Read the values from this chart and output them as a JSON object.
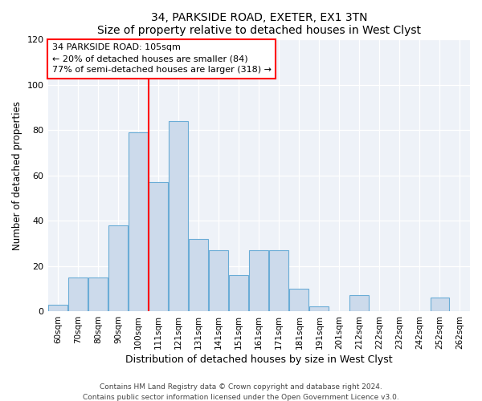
{
  "title1": "34, PARKSIDE ROAD, EXETER, EX1 3TN",
  "title2": "Size of property relative to detached houses in West Clyst",
  "xlabel": "Distribution of detached houses by size in West Clyst",
  "ylabel": "Number of detached properties",
  "bar_labels": [
    "60sqm",
    "70sqm",
    "80sqm",
    "90sqm",
    "100sqm",
    "111sqm",
    "121sqm",
    "131sqm",
    "141sqm",
    "151sqm",
    "161sqm",
    "171sqm",
    "181sqm",
    "191sqm",
    "201sqm",
    "212sqm",
    "222sqm",
    "232sqm",
    "242sqm",
    "252sqm",
    "262sqm"
  ],
  "bar_values": [
    3,
    15,
    15,
    38,
    79,
    57,
    84,
    32,
    27,
    16,
    27,
    27,
    10,
    2,
    0,
    7,
    0,
    0,
    0,
    6,
    0
  ],
  "bar_color": "#ccdaeb",
  "bar_edge_color": "#6aacd6",
  "ylim": [
    0,
    120
  ],
  "yticks": [
    0,
    20,
    40,
    60,
    80,
    100,
    120
  ],
  "red_line_x": 4.5,
  "annotation_text": "34 PARKSIDE ROAD: 105sqm\n← 20% of detached houses are smaller (84)\n77% of semi-detached houses are larger (318) →",
  "annotation_box_color": "white",
  "annotation_box_edge": "red",
  "footer1": "Contains HM Land Registry data © Crown copyright and database right 2024.",
  "footer2": "Contains public sector information licensed under the Open Government Licence v3.0.",
  "background_color": "#ffffff",
  "plot_bg_color": "#eef2f8"
}
